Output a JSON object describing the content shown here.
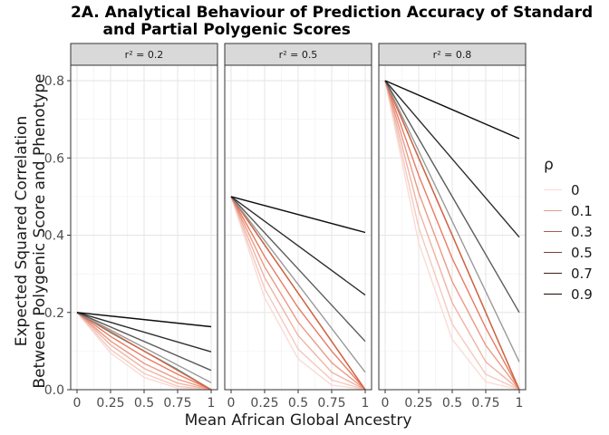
{
  "title": "2A. Analytical Behaviour of Prediction Accuracy of Standard\n      and Partial Polygenic Scores",
  "chart_data": {
    "type": "line",
    "xlabel": "Mean African Global Ancestry",
    "ylabel": "Expected Squared Correlation\nBetween Polygenic Score and Phenotype",
    "xlim": [
      0,
      1
    ],
    "ylim": [
      0,
      0.84
    ],
    "x_ticks": [
      "0",
      "0.25",
      "0.5",
      "0.75",
      "1"
    ],
    "y_ticks": [
      "0.0",
      "0.2",
      "0.4",
      "0.6",
      "0.8"
    ],
    "grid": true,
    "legend": {
      "title": "ρ",
      "position": "right",
      "entries": [
        {
          "label": "0",
          "color": "#f9dcd6"
        },
        {
          "label": "0.1",
          "color": "#dd9e90"
        },
        {
          "label": "0.3",
          "color": "#a35f52"
        },
        {
          "label": "0.5",
          "color": "#7a4035"
        },
        {
          "label": "0.7",
          "color": "#3c1f18"
        },
        {
          "label": "0.9",
          "color": "#1a0804"
        }
      ]
    },
    "panels": [
      {
        "strip": "r² = 0.2",
        "series": [
          {
            "x": [
              0,
              1
            ],
            "y": [
              0.2,
              0.163
            ]
          },
          {
            "x": [
              0,
              1
            ],
            "y": [
              0.2,
              0.098
            ]
          },
          {
            "x": [
              0,
              1
            ],
            "y": [
              0.2,
              0.05
            ]
          },
          {
            "x": [
              0,
              1
            ],
            "y": [
              0.2,
              0.018
            ]
          },
          {
            "x": [
              0,
              1
            ],
            "y": [
              0.2,
              0.0
            ]
          },
          {
            "x": [
              0,
              0.25,
              0.5,
              0.75,
              1
            ],
            "y": [
              0.2,
              0.148,
              0.1,
              0.052,
              0.0
            ]
          },
          {
            "x": [
              0,
              0.25,
              0.5,
              0.75,
              1
            ],
            "y": [
              0.2,
              0.138,
              0.085,
              0.04,
              0.0
            ]
          },
          {
            "x": [
              0,
              0.25,
              0.5,
              0.75,
              1
            ],
            "y": [
              0.2,
              0.126,
              0.068,
              0.027,
              0.0
            ]
          },
          {
            "x": [
              0,
              0.25,
              0.5,
              0.75,
              1
            ],
            "y": [
              0.2,
              0.116,
              0.055,
              0.017,
              0.0
            ]
          },
          {
            "x": [
              0,
              0.25,
              0.5,
              0.75,
              1
            ],
            "y": [
              0.2,
              0.104,
              0.042,
              0.009,
              0.0
            ]
          },
          {
            "x": [
              0,
              0.25,
              0.5,
              0.75,
              1
            ],
            "y": [
              0.2,
              0.095,
              0.032,
              0.004,
              0.0
            ]
          }
        ]
      },
      {
        "strip": "r² = 0.5",
        "series": [
          {
            "x": [
              0,
              1
            ],
            "y": [
              0.5,
              0.407
            ]
          },
          {
            "x": [
              0,
              1
            ],
            "y": [
              0.5,
              0.245
            ]
          },
          {
            "x": [
              0,
              1
            ],
            "y": [
              0.5,
              0.125
            ]
          },
          {
            "x": [
              0,
              1
            ],
            "y": [
              0.5,
              0.045
            ]
          },
          {
            "x": [
              0,
              1
            ],
            "y": [
              0.5,
              0.0
            ]
          },
          {
            "x": [
              0,
              0.25,
              0.5,
              0.75,
              1
            ],
            "y": [
              0.5,
              0.375,
              0.25,
              0.125,
              0.0
            ]
          },
          {
            "x": [
              0,
              0.25,
              0.5,
              0.75,
              1
            ],
            "y": [
              0.5,
              0.345,
              0.212,
              0.1,
              0.0
            ]
          },
          {
            "x": [
              0,
              0.25,
              0.5,
              0.75,
              1
            ],
            "y": [
              0.5,
              0.318,
              0.175,
              0.07,
              0.0
            ]
          },
          {
            "x": [
              0,
              0.25,
              0.5,
              0.75,
              1
            ],
            "y": [
              0.5,
              0.29,
              0.14,
              0.045,
              0.0
            ]
          },
          {
            "x": [
              0,
              0.25,
              0.5,
              0.75,
              1
            ],
            "y": [
              0.5,
              0.262,
              0.105,
              0.025,
              0.0
            ]
          },
          {
            "x": [
              0,
              0.25,
              0.5,
              0.75,
              1
            ],
            "y": [
              0.5,
              0.238,
              0.08,
              0.012,
              0.0
            ]
          }
        ]
      },
      {
        "strip": "r² = 0.8",
        "series": [
          {
            "x": [
              0,
              1
            ],
            "y": [
              0.8,
              0.65
            ]
          },
          {
            "x": [
              0,
              1
            ],
            "y": [
              0.8,
              0.395
            ]
          },
          {
            "x": [
              0,
              1
            ],
            "y": [
              0.8,
              0.2
            ]
          },
          {
            "x": [
              0,
              1
            ],
            "y": [
              0.8,
              0.072
            ]
          },
          {
            "x": [
              0,
              1
            ],
            "y": [
              0.8,
              0.0
            ]
          },
          {
            "x": [
              0,
              0.25,
              0.5,
              0.75,
              1
            ],
            "y": [
              0.8,
              0.6,
              0.4,
              0.2,
              0.0
            ]
          },
          {
            "x": [
              0,
              0.25,
              0.5,
              0.75,
              1
            ],
            "y": [
              0.8,
              0.555,
              0.34,
              0.16,
              0.0
            ]
          },
          {
            "x": [
              0,
              0.25,
              0.5,
              0.75,
              1
            ],
            "y": [
              0.8,
              0.51,
              0.28,
              0.115,
              0.0
            ]
          },
          {
            "x": [
              0,
              0.25,
              0.5,
              0.75,
              1
            ],
            "y": [
              0.8,
              0.465,
              0.225,
              0.072,
              0.0
            ]
          },
          {
            "x": [
              0,
              0.25,
              0.5,
              0.75,
              1
            ],
            "y": [
              0.8,
              0.42,
              0.17,
              0.04,
              0.0
            ]
          },
          {
            "x": [
              0,
              0.25,
              0.5,
              0.75,
              1
            ],
            "y": [
              0.8,
              0.38,
              0.13,
              0.02,
              0.0
            ]
          }
        ]
      }
    ]
  },
  "series_colors": [
    "#0d0d0d",
    "#2e2e2e",
    "#5c5c5c",
    "#9a9a9a",
    "#e2603c",
    "#1a9a98",
    "#e87c63",
    "#eb9a86",
    "#f0b3a4",
    "#f5c9be",
    "#f9dcd6"
  ]
}
